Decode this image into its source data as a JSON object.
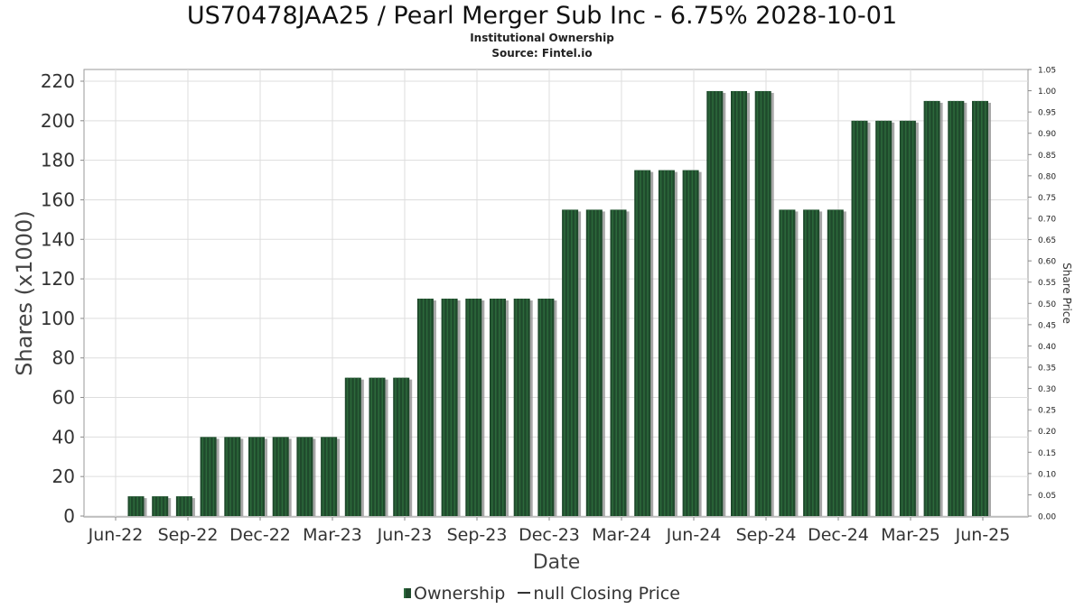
{
  "header": {
    "title": "US70478JAA25 / Pearl Merger Sub Inc - 6.75% 2028-10-01",
    "subtitle_1": "Institutional Ownership",
    "subtitle_2": "Source: Fintel.io"
  },
  "legend": {
    "ownership_label": "Ownership",
    "price_label": "null Closing Price"
  },
  "colors": {
    "bar_fill": "#1f4a2c",
    "bar_highlight": "#2f7040",
    "bar_shadow": "#8a8a8a",
    "grid": "#dddddd"
  },
  "chart_data": {
    "type": "bar",
    "xlabel": "Date",
    "ylabel": "Shares (x1000)",
    "y2label": "Share Price",
    "ylim": [
      0,
      220
    ],
    "y2lim": [
      0,
      1.05
    ],
    "yticks": [
      0,
      20,
      40,
      60,
      80,
      100,
      120,
      140,
      160,
      180,
      200,
      220
    ],
    "y2ticks": [
      "0.00",
      "0.05",
      "0.10",
      "0.15",
      "0.20",
      "0.25",
      "0.30",
      "0.35",
      "0.40",
      "0.45",
      "0.50",
      "0.55",
      "0.60",
      "0.65",
      "0.70",
      "0.75",
      "0.80",
      "0.85",
      "0.90",
      "0.95",
      "1.00",
      "1.05"
    ],
    "xticks": [
      "Jun-22",
      "Sep-22",
      "Dec-22",
      "Mar-23",
      "Jun-23",
      "Sep-23",
      "Dec-23",
      "Mar-24",
      "Jun-24",
      "Sep-24",
      "Dec-24",
      "Mar-25",
      "Jun-25"
    ],
    "grid": true,
    "legend_position": "bottom",
    "series": [
      {
        "name": "Ownership",
        "values": [
          10,
          10,
          10,
          40,
          40,
          40,
          40,
          40,
          40,
          70,
          70,
          70,
          110,
          110,
          110,
          110,
          110,
          110,
          155,
          155,
          155,
          175,
          175,
          175,
          215,
          215,
          215,
          155,
          155,
          155,
          200,
          200,
          200,
          210,
          210,
          210
        ]
      }
    ]
  }
}
